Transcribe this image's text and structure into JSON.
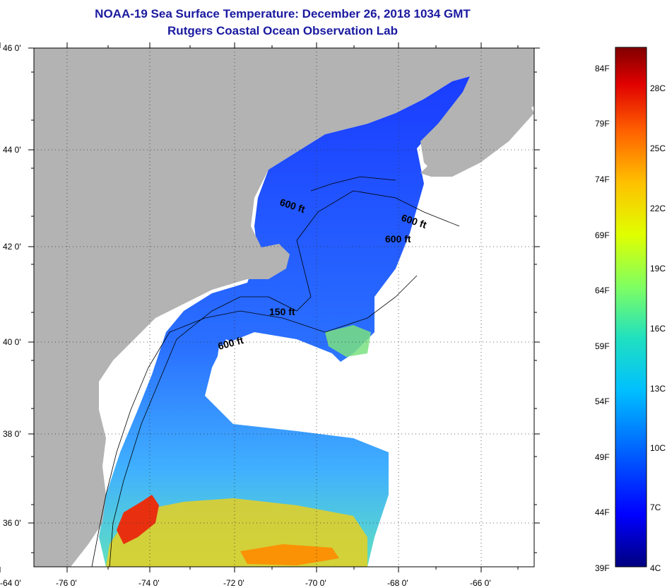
{
  "header": {
    "title": "NOAA-19 Sea Surface Temperature:  December 26, 2018 1034 GMT",
    "subtitle": "Rutgers Coastal Ocean Observation Lab"
  },
  "axes": {
    "lat_labels": [
      "46 0'",
      "44 0'",
      "42 0'",
      "40 0'",
      "38 0'",
      "36 0'"
    ],
    "lon_labels": [
      "-76 0'",
      "-74 0'",
      "-72 0'",
      "-70 0'",
      "-68 0'",
      "-66 0'",
      "-64 0'"
    ]
  },
  "contours": [
    {
      "label": "600 ft"
    },
    {
      "label": "600 ft"
    },
    {
      "label": "600 ft"
    },
    {
      "label": "150 ft"
    },
    {
      "label": "600 ft"
    }
  ],
  "colorbar": {
    "fahrenheit": [
      "84F",
      "79F",
      "74F",
      "69F",
      "64F",
      "59F",
      "54F",
      "49F",
      "44F",
      "39F"
    ],
    "celsius": [
      "28C",
      "25C",
      "22C",
      "19C",
      "16C",
      "13C",
      "10C",
      "7C",
      "4C"
    ]
  },
  "colors": {
    "land": "#b3b3b3",
    "cloud": "#ffffff",
    "title": "#1a1aa0",
    "ramp": [
      "#00007f",
      "#0000ff",
      "#0060ff",
      "#00c0ff",
      "#20e0c0",
      "#80ff60",
      "#e0ff00",
      "#ffc000",
      "#ff6000",
      "#e00000",
      "#800000"
    ]
  }
}
